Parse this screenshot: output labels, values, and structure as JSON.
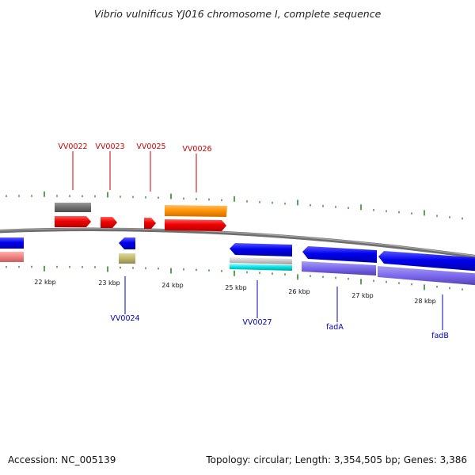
{
  "title": "Vibrio vulnificus YJ016 chromosome I, complete sequence",
  "footer": {
    "accession": "Accession: NC_005139",
    "stats": "Topology: circular; Length: 3,354,505 bp; Genes: 3,386"
  },
  "colors": {
    "backbone": "#7a7a7a",
    "tick": "#2e8b2e",
    "forward_label": "#cc0000",
    "reverse_label": "#0000bb"
  },
  "kbp_labels": [
    "22 kbp",
    "23 kbp",
    "24 kbp",
    "25 kbp",
    "26 kbp",
    "27 kbp",
    "28 kbp"
  ],
  "gene_labels_top": [
    "VV0022",
    "VV0023",
    "VV0025",
    "VV0026"
  ],
  "gene_labels_bottom": [
    "VV0024",
    "VV0027",
    "fadA",
    "fadB"
  ]
}
